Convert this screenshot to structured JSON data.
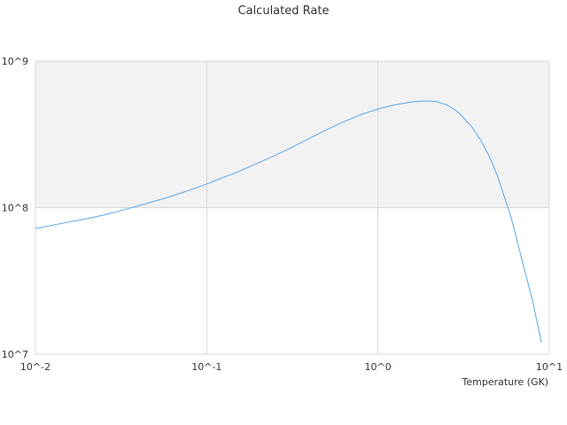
{
  "chart_data": {
    "type": "line",
    "title": "Calculated Rate",
    "xlabel": "Temperature (GK)",
    "ylabel": "",
    "x_scale": "log",
    "y_scale": "log",
    "xlim": [
      0.01,
      10
    ],
    "ylim": [
      10000000,
      1000000000
    ],
    "x_tick_labels": [
      {
        "value": 0.01,
        "label": "10^-2"
      },
      {
        "value": 0.1,
        "label": "10^-1"
      },
      {
        "value": 1,
        "label": "10^0"
      },
      {
        "value": 10,
        "label": "10^1"
      }
    ],
    "y_tick_labels": [
      {
        "value": 10000000,
        "label": "10^7"
      },
      {
        "value": 100000000,
        "label": "10^8"
      },
      {
        "value": 1000000000,
        "label": "10^9"
      }
    ],
    "grid": true,
    "shaded_band": {
      "from": 100000000,
      "to": 1000000000,
      "color": "#f2f2f2"
    },
    "colors": {
      "line": "#5aa6e8",
      "grid": "#d9d9d9",
      "plot_border": "#dddddd"
    },
    "series": [
      {
        "x": [
          0.01,
          0.012,
          0.015,
          0.02,
          0.025,
          0.03,
          0.04,
          0.05,
          0.06,
          0.08,
          0.1,
          0.12,
          0.15,
          0.2,
          0.25,
          0.3,
          0.4,
          0.5,
          0.6,
          0.8,
          1.0,
          1.2,
          1.4,
          1.6,
          1.8,
          2.0,
          2.2,
          2.5,
          2.8,
          3.0,
          3.5,
          4.0,
          4.5,
          5.0,
          6.0,
          7.0,
          8.0,
          9.0
        ],
        "y": [
          72000000,
          75000000,
          79000000,
          84000000,
          89000000,
          94000000,
          103000000,
          111000000,
          118000000,
          132000000,
          145000000,
          158000000,
          174000000,
          202000000,
          227000000,
          251000000,
          298000000,
          340000000,
          376000000,
          433000000,
          471000000,
          497000000,
          515000000,
          527000000,
          533000000,
          535000000,
          529000000,
          505000000,
          467000000,
          437000000,
          361000000,
          286000000,
          219000000,
          163000000,
          85000000,
          42000000,
          23000000,
          12000000
        ]
      }
    ]
  }
}
